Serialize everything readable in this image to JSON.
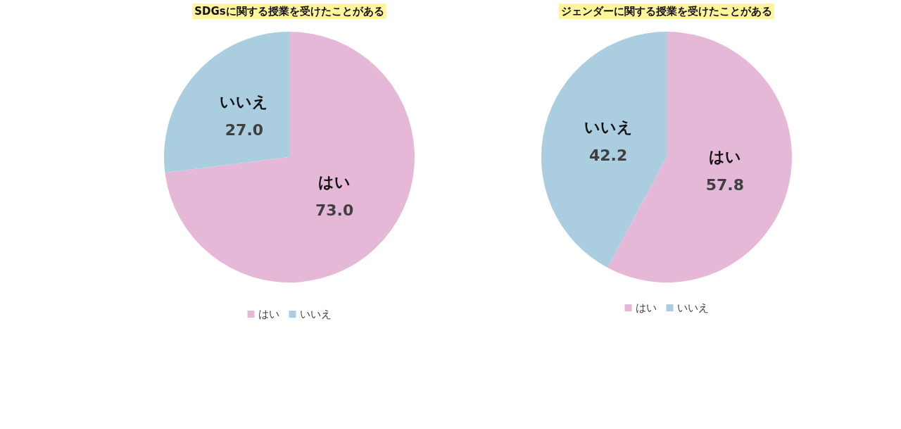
{
  "chart_data": [
    {
      "type": "pie",
      "title": "SDGsに関する授業を受けたことがある",
      "categories": [
        "はい",
        "いいえ"
      ],
      "values": [
        73.0,
        27.0
      ],
      "value_labels": [
        "73.0",
        "27.0"
      ],
      "colors": [
        "#e6b8d8",
        "#abcde0"
      ],
      "legend": "bottom"
    },
    {
      "type": "pie",
      "title": "ジェンダーに関する授業を受けたことがある",
      "categories": [
        "はい",
        "いいえ"
      ],
      "values": [
        57.8,
        42.2
      ],
      "value_labels": [
        "57.8",
        "42.2"
      ],
      "colors": [
        "#e6b8d8",
        "#abcde0"
      ],
      "legend": "bottom"
    }
  ]
}
